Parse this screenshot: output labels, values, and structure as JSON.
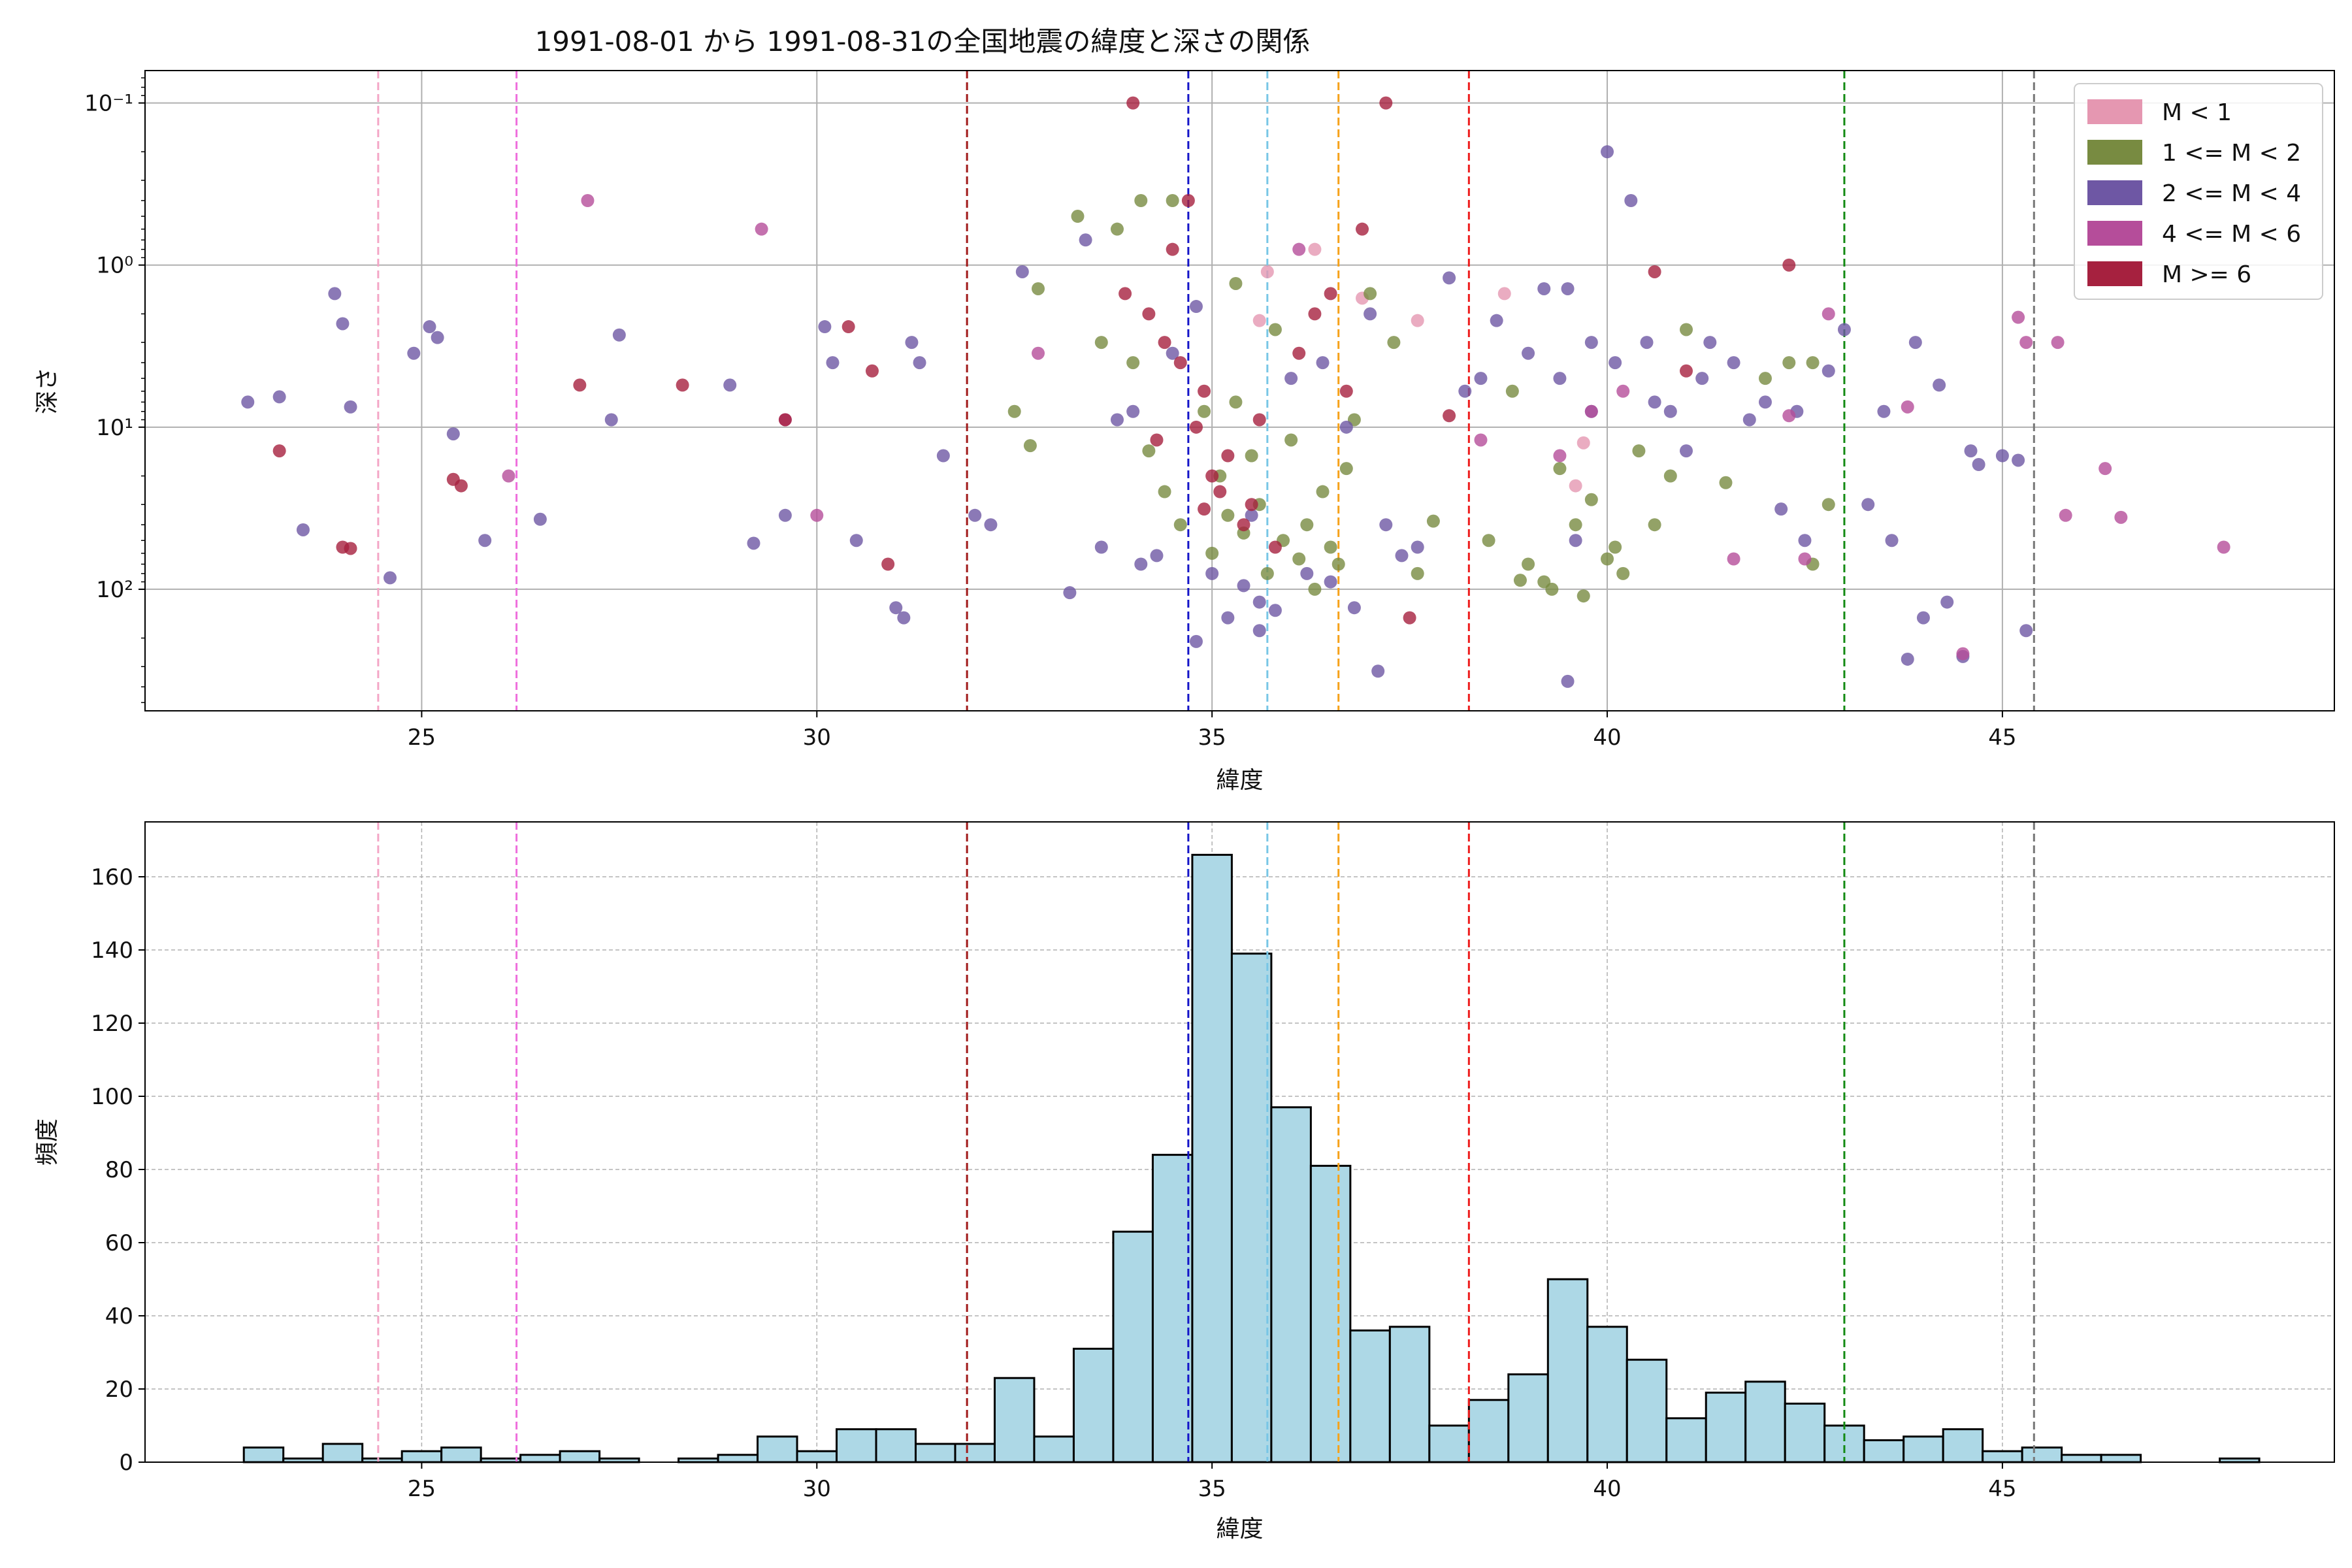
{
  "title": "1991-08-01 から 1991-08-31の全国地震の緯度と深さの関係",
  "top_xlabel": "緯度",
  "top_ylabel": "深さ",
  "bottom_xlabel": "緯度",
  "bottom_ylabel": "頻度",
  "legend": [
    {
      "label": "M < 1",
      "color": "#e597b1"
    },
    {
      "label": "1 <= M < 2",
      "color": "#788b41"
    },
    {
      "label": "2 <= M < 4",
      "color": "#6e57a4"
    },
    {
      "label": "4 <= M < 6",
      "color": "#b54d9a"
    },
    {
      "label": "M >= 6",
      "color": "#a6213f"
    }
  ],
  "chart_data": [
    {
      "type": "scatter",
      "name": "latitude-vs-depth",
      "xlim": [
        21.5,
        49.2
      ],
      "ylim_log": [
        -1.2,
        2.75
      ],
      "y_scale": "log-inverted",
      "xticks": [
        25,
        30,
        35,
        40,
        45
      ],
      "yticks": [
        {
          "label": "10⁻¹",
          "exp": -1
        },
        {
          "label": "10⁰",
          "exp": 0
        },
        {
          "label": "10¹",
          "exp": 1
        },
        {
          "label": "10²",
          "exp": 2
        }
      ],
      "vlines": [
        {
          "x": 24.45,
          "color": "#f4a6c6"
        },
        {
          "x": 26.2,
          "color": "#ee6fdd"
        },
        {
          "x": 31.9,
          "color": "#a11a1a"
        },
        {
          "x": 34.7,
          "color": "#1414c8"
        },
        {
          "x": 35.7,
          "color": "#78c6e6"
        },
        {
          "x": 36.6,
          "color": "#f6a21a"
        },
        {
          "x": 38.25,
          "color": "#ee1c1c"
        },
        {
          "x": 43.0,
          "color": "#138a13"
        },
        {
          "x": 45.4,
          "color": "#777777"
        }
      ],
      "series": [
        {
          "name": "M < 1",
          "color": "#e597b1",
          "points": [
            [
              35.6,
              2.2
            ],
            [
              35.7,
              1.1
            ],
            [
              36.3,
              0.8
            ],
            [
              37.6,
              2.2
            ],
            [
              36.9,
              1.6
            ],
            [
              38.7,
              1.5
            ],
            [
              39.7,
              12.5
            ],
            [
              39.6,
              23.0
            ]
          ]
        },
        {
          "name": "1 <= M < 2",
          "color": "#788b41",
          "points": [
            [
              32.5,
              8
            ],
            [
              32.7,
              13
            ],
            [
              32.8,
              1.4
            ],
            [
              33.6,
              3
            ],
            [
              33.8,
              0.6
            ],
            [
              34.0,
              4
            ],
            [
              34.2,
              14
            ],
            [
              34.4,
              25
            ],
            [
              34.5,
              0.4
            ],
            [
              34.6,
              40
            ],
            [
              34.9,
              8
            ],
            [
              35.0,
              60
            ],
            [
              35.1,
              20
            ],
            [
              35.2,
              35
            ],
            [
              35.3,
              7
            ],
            [
              35.4,
              45
            ],
            [
              35.5,
              15
            ],
            [
              35.6,
              30
            ],
            [
              35.7,
              80
            ],
            [
              35.8,
              2.5
            ],
            [
              35.9,
              50
            ],
            [
              36.0,
              12
            ],
            [
              36.1,
              65
            ],
            [
              36.2,
              40
            ],
            [
              36.3,
              100
            ],
            [
              36.4,
              25
            ],
            [
              36.5,
              55
            ],
            [
              36.6,
              70
            ],
            [
              36.7,
              18
            ],
            [
              36.8,
              9
            ],
            [
              37.0,
              1.5
            ],
            [
              37.3,
              3
            ],
            [
              37.6,
              80
            ],
            [
              38.5,
              50
            ],
            [
              38.8,
              6
            ],
            [
              39.0,
              70
            ],
            [
              39.2,
              90
            ],
            [
              39.4,
              18
            ],
            [
              39.6,
              40
            ],
            [
              39.7,
              110
            ],
            [
              39.8,
              28
            ],
            [
              40.0,
              65
            ],
            [
              40.2,
              80
            ],
            [
              40.4,
              14
            ],
            [
              40.6,
              40
            ],
            [
              40.8,
              20
            ],
            [
              41.0,
              2.5
            ],
            [
              41.5,
              22
            ],
            [
              42.0,
              5
            ],
            [
              42.3,
              4
            ],
            [
              42.6,
              4
            ],
            [
              42.8,
              30
            ],
            [
              42.6,
              70
            ],
            [
              34.1,
              0.4
            ],
            [
              33.3,
              0.5
            ],
            [
              35.3,
              1.3
            ],
            [
              37.8,
              38
            ],
            [
              38.9,
              88
            ],
            [
              39.3,
              100
            ],
            [
              40.1,
              55
            ]
          ]
        },
        {
          "name": "2 <= M < 4",
          "color": "#6e57a4",
          "points": [
            [
              22.8,
              7
            ],
            [
              23.2,
              6.5
            ],
            [
              23.5,
              43
            ],
            [
              23.9,
              1.5
            ],
            [
              24.0,
              2.3
            ],
            [
              24.1,
              7.5
            ],
            [
              24.6,
              85
            ],
            [
              24.9,
              3.5
            ],
            [
              25.1,
              2.4
            ],
            [
              25.2,
              2.8
            ],
            [
              25.4,
              11
            ],
            [
              25.8,
              50
            ],
            [
              26.5,
              37
            ],
            [
              27.4,
              9
            ],
            [
              27.5,
              2.7
            ],
            [
              28.9,
              5.5
            ],
            [
              29.2,
              52
            ],
            [
              29.6,
              35
            ],
            [
              30.1,
              2.4
            ],
            [
              30.2,
              4
            ],
            [
              30.5,
              50
            ],
            [
              31.0,
              130
            ],
            [
              31.1,
              150
            ],
            [
              31.2,
              3
            ],
            [
              31.3,
              4
            ],
            [
              31.6,
              15
            ],
            [
              32.0,
              35
            ],
            [
              32.2,
              40
            ],
            [
              32.6,
              1.1
            ],
            [
              33.2,
              105
            ],
            [
              33.4,
              0.7
            ],
            [
              33.6,
              55
            ],
            [
              34.1,
              70
            ],
            [
              34.3,
              62
            ],
            [
              34.5,
              3.5
            ],
            [
              34.8,
              1.8
            ],
            [
              35.0,
              80
            ],
            [
              35.2,
              150
            ],
            [
              35.4,
              95
            ],
            [
              35.5,
              35
            ],
            [
              35.6,
              120
            ],
            [
              35.8,
              135
            ],
            [
              36.0,
              5
            ],
            [
              36.2,
              80
            ],
            [
              36.4,
              4
            ],
            [
              36.5,
              90
            ],
            [
              36.8,
              130
            ],
            [
              37.0,
              2
            ],
            [
              37.2,
              40
            ],
            [
              37.4,
              62
            ],
            [
              37.6,
              55
            ],
            [
              38.0,
              1.2
            ],
            [
              38.4,
              5
            ],
            [
              38.6,
              2.2
            ],
            [
              39.0,
              3.5
            ],
            [
              39.2,
              1.4
            ],
            [
              39.4,
              5
            ],
            [
              39.5,
              1.4
            ],
            [
              39.6,
              50
            ],
            [
              39.8,
              8
            ],
            [
              40.0,
              0.2
            ],
            [
              40.1,
              4
            ],
            [
              40.3,
              0.4
            ],
            [
              40.5,
              3
            ],
            [
              40.8,
              8
            ],
            [
              41.0,
              14
            ],
            [
              41.3,
              3
            ],
            [
              41.6,
              4
            ],
            [
              42.0,
              7
            ],
            [
              42.2,
              32
            ],
            [
              42.5,
              50
            ],
            [
              42.8,
              4.5
            ],
            [
              43.0,
              2.5
            ],
            [
              43.3,
              30
            ],
            [
              43.6,
              50
            ],
            [
              43.8,
              270
            ],
            [
              43.9,
              3
            ],
            [
              44.0,
              150
            ],
            [
              44.2,
              5.5
            ],
            [
              44.3,
              120
            ],
            [
              44.5,
              260
            ],
            [
              44.6,
              14
            ],
            [
              44.7,
              17
            ],
            [
              45.0,
              15
            ],
            [
              45.2,
              16
            ],
            [
              45.3,
              180
            ],
            [
              34.8,
              210
            ],
            [
              35.6,
              180
            ],
            [
              37.1,
              320
            ],
            [
              39.5,
              370
            ],
            [
              41.8,
              9
            ],
            [
              42.4,
              8
            ],
            [
              43.5,
              8
            ],
            [
              33.8,
              9
            ],
            [
              34.0,
              8
            ],
            [
              36.7,
              10
            ],
            [
              38.2,
              6
            ],
            [
              39.8,
              3
            ],
            [
              40.6,
              7
            ],
            [
              41.2,
              5
            ]
          ]
        },
        {
          "name": "4 <= M < 6",
          "color": "#b54d9a",
          "points": [
            [
              26.1,
              20
            ],
            [
              27.1,
              0.4
            ],
            [
              29.3,
              0.6
            ],
            [
              29.6,
              9
            ],
            [
              30.0,
              35
            ],
            [
              32.8,
              3.5
            ],
            [
              36.1,
              0.8
            ],
            [
              38.4,
              12
            ],
            [
              39.4,
              15
            ],
            [
              39.8,
              8
            ],
            [
              40.2,
              6
            ],
            [
              41.6,
              65
            ],
            [
              42.5,
              65
            ],
            [
              42.8,
              2
            ],
            [
              43.8,
              7.5
            ],
            [
              44.5,
              250
            ],
            [
              45.2,
              2.1
            ],
            [
              45.3,
              3
            ],
            [
              45.7,
              3
            ],
            [
              45.8,
              35
            ],
            [
              46.3,
              18
            ],
            [
              46.5,
              36
            ],
            [
              47.8,
              55
            ],
            [
              42.3,
              8.5
            ]
          ]
        },
        {
          "name": "M >= 6",
          "color": "#a6213f",
          "points": [
            [
              23.2,
              14
            ],
            [
              24.0,
              55
            ],
            [
              24.1,
              56
            ],
            [
              25.4,
              21
            ],
            [
              25.5,
              23
            ],
            [
              27.0,
              5.5
            ],
            [
              28.3,
              5.5
            ],
            [
              29.6,
              9
            ],
            [
              30.4,
              2.4
            ],
            [
              30.7,
              4.5
            ],
            [
              30.9,
              70
            ],
            [
              33.9,
              1.5
            ],
            [
              34.0,
              0.1
            ],
            [
              34.2,
              2.0
            ],
            [
              34.4,
              3
            ],
            [
              34.5,
              0.8
            ],
            [
              34.6,
              4
            ],
            [
              34.7,
              0.4
            ],
            [
              34.8,
              10
            ],
            [
              34.9,
              6
            ],
            [
              35.0,
              20
            ],
            [
              35.2,
              15
            ],
            [
              35.4,
              40
            ],
            [
              35.5,
              30
            ],
            [
              35.6,
              9
            ],
            [
              35.8,
              55
            ],
            [
              36.1,
              3.5
            ],
            [
              36.5,
              1.5
            ],
            [
              36.7,
              6
            ],
            [
              36.9,
              0.6
            ],
            [
              37.2,
              0.1
            ],
            [
              37.5,
              150
            ],
            [
              38.0,
              8.5
            ],
            [
              40.6,
              1.1
            ],
            [
              41.0,
              4.5
            ],
            [
              42.3,
              1.0
            ],
            [
              34.3,
              12
            ],
            [
              35.1,
              25
            ],
            [
              34.9,
              32
            ],
            [
              36.3,
              2.0
            ]
          ]
        }
      ]
    },
    {
      "type": "bar",
      "name": "latitude-histogram",
      "xlim": [
        21.5,
        49.2
      ],
      "ylim": [
        0,
        175
      ],
      "xticks": [
        25,
        30,
        35,
        40,
        45
      ],
      "yticks": [
        0,
        20,
        40,
        60,
        80,
        100,
        120,
        140,
        160
      ],
      "bin_start": 22.75,
      "bin_width": 0.5,
      "values": [
        4,
        1,
        5,
        1,
        3,
        4,
        1,
        2,
        3,
        1,
        0,
        1,
        2,
        7,
        3,
        9,
        9,
        5,
        5,
        23,
        7,
        31,
        63,
        84,
        166,
        139,
        97,
        81,
        36,
        37,
        10,
        17,
        24,
        50,
        37,
        28,
        12,
        19,
        22,
        16,
        10,
        6,
        7,
        9,
        3,
        4,
        2,
        2,
        0,
        0,
        1
      ],
      "vlines": [
        {
          "x": 24.45,
          "color": "#f4a6c6"
        },
        {
          "x": 26.2,
          "color": "#ee6fdd"
        },
        {
          "x": 31.9,
          "color": "#a11a1a"
        },
        {
          "x": 34.7,
          "color": "#1414c8"
        },
        {
          "x": 35.7,
          "color": "#78c6e6"
        },
        {
          "x": 36.6,
          "color": "#f6a21a"
        },
        {
          "x": 38.25,
          "color": "#ee1c1c"
        },
        {
          "x": 43.0,
          "color": "#138a13"
        },
        {
          "x": 45.4,
          "color": "#777777"
        }
      ]
    }
  ]
}
